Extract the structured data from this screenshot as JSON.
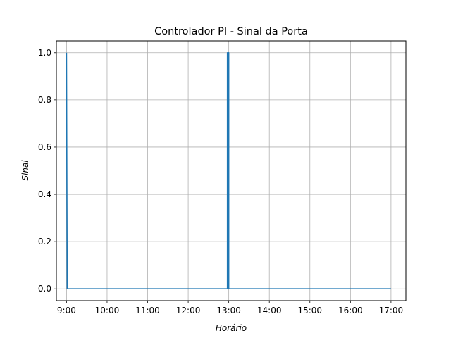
{
  "chart_data": {
    "type": "line",
    "title": "Controlador PI - Sinal da Porta",
    "xlabel": "Horário",
    "ylabel": "Sinal",
    "xlim": [
      "8:45",
      "17:22"
    ],
    "ylim": [
      -0.05,
      1.05
    ],
    "grid": true,
    "xticks": [
      "9:00",
      "10:00",
      "11:00",
      "12:00",
      "13:00",
      "14:00",
      "15:00",
      "16:00",
      "17:00"
    ],
    "yticks": [
      "0.0",
      "0.2",
      "0.4",
      "0.6",
      "0.8",
      "1.0"
    ],
    "series": [
      {
        "color": "#1f77b4",
        "x": [
          "9:00",
          "9:01",
          "12:58",
          "12:58",
          "12:59",
          "12:59",
          "13:00",
          "13:00",
          "17:00"
        ],
        "y": [
          1.0,
          0.0,
          0.0,
          1.0,
          0.0,
          1.0,
          1.0,
          0.0,
          0.0
        ]
      }
    ]
  }
}
